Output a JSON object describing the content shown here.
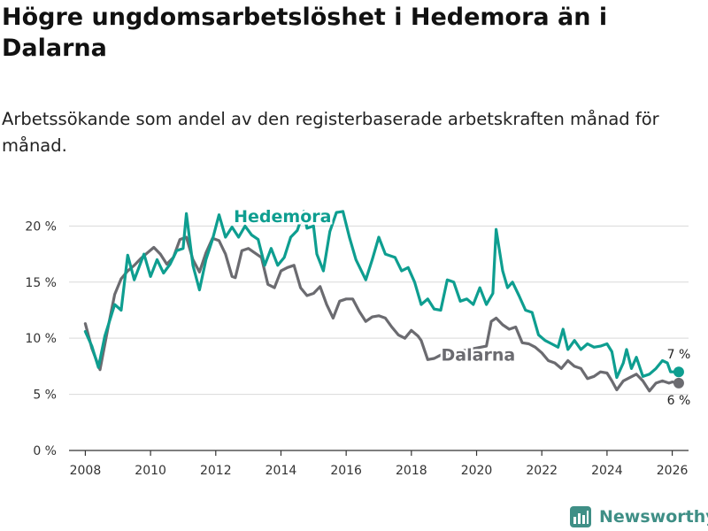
{
  "header": {
    "title": "Högre ungdomsarbetslöshet i Hedemora än i Dalarna",
    "subtitle": "Arbetssökande som andel av den registerbaserade arbetskraften månad för månad."
  },
  "footer": {
    "brand": "Newsworthy"
  },
  "colors": {
    "hedemora": "#0e9e90",
    "dalarna": "#6b6b70",
    "grid": "#d9d9d9",
    "axis": "#333333"
  },
  "chart_data": {
    "type": "line",
    "title": "Högre ungdomsarbetslöshet i Hedemora än i Dalarna",
    "subtitle": "Arbetssökande som andel av den registerbaserade arbetskraften månad för månad.",
    "xlabel": "",
    "ylabel": "",
    "xlim": [
      2007.5,
      2026.5
    ],
    "ylim": [
      0,
      22
    ],
    "x_ticks": [
      2008,
      2010,
      2012,
      2014,
      2016,
      2018,
      2020,
      2022,
      2024,
      2026
    ],
    "x_tick_labels": [
      "2008",
      "2010",
      "2012",
      "2014",
      "2016",
      "2018",
      "2020",
      "2022",
      "2024",
      "2026"
    ],
    "y_ticks": [
      0,
      5,
      10,
      15,
      20
    ],
    "y_tick_labels": [
      "0 %",
      "5 %",
      "10 %",
      "15 %",
      "20 %"
    ],
    "grid": true,
    "series": [
      {
        "name": "Hedemora",
        "label": "Hedemora",
        "end_label": "7 %",
        "points": [
          [
            2008.0,
            10.6
          ],
          [
            2008.2,
            9.3
          ],
          [
            2008.4,
            7.4
          ],
          [
            2008.6,
            10.2
          ],
          [
            2008.9,
            13.0
          ],
          [
            2009.1,
            12.5
          ],
          [
            2009.3,
            17.4
          ],
          [
            2009.5,
            15.2
          ],
          [
            2009.8,
            17.5
          ],
          [
            2010.0,
            15.5
          ],
          [
            2010.2,
            17.0
          ],
          [
            2010.4,
            15.8
          ],
          [
            2010.6,
            16.6
          ],
          [
            2010.8,
            17.8
          ],
          [
            2011.0,
            18.0
          ],
          [
            2011.1,
            21.1
          ],
          [
            2011.3,
            16.5
          ],
          [
            2011.5,
            14.3
          ],
          [
            2011.7,
            17.0
          ],
          [
            2011.9,
            18.8
          ],
          [
            2012.1,
            21.0
          ],
          [
            2012.3,
            19.0
          ],
          [
            2012.5,
            19.9
          ],
          [
            2012.7,
            19.0
          ],
          [
            2012.9,
            20.0
          ],
          [
            2013.1,
            19.2
          ],
          [
            2013.3,
            18.8
          ],
          [
            2013.5,
            16.5
          ],
          [
            2013.7,
            18.0
          ],
          [
            2013.9,
            16.5
          ],
          [
            2014.1,
            17.2
          ],
          [
            2014.3,
            19.0
          ],
          [
            2014.5,
            19.6
          ],
          [
            2014.7,
            21.3
          ],
          [
            2014.8,
            19.8
          ],
          [
            2015.0,
            20.0
          ],
          [
            2015.1,
            17.5
          ],
          [
            2015.3,
            16.0
          ],
          [
            2015.5,
            19.5
          ],
          [
            2015.7,
            21.2
          ],
          [
            2015.9,
            21.3
          ],
          [
            2016.1,
            19.0
          ],
          [
            2016.3,
            17.0
          ],
          [
            2016.6,
            15.2
          ],
          [
            2016.8,
            17.0
          ],
          [
            2017.0,
            19.0
          ],
          [
            2017.2,
            17.5
          ],
          [
            2017.5,
            17.2
          ],
          [
            2017.7,
            16.0
          ],
          [
            2017.9,
            16.3
          ],
          [
            2018.1,
            15.0
          ],
          [
            2018.3,
            13.0
          ],
          [
            2018.5,
            13.5
          ],
          [
            2018.7,
            12.6
          ],
          [
            2018.9,
            12.5
          ],
          [
            2019.1,
            15.2
          ],
          [
            2019.3,
            15.0
          ],
          [
            2019.5,
            13.3
          ],
          [
            2019.7,
            13.5
          ],
          [
            2019.9,
            13.0
          ],
          [
            2020.1,
            14.5
          ],
          [
            2020.3,
            13.0
          ],
          [
            2020.5,
            14.0
          ],
          [
            2020.6,
            19.7
          ],
          [
            2020.8,
            16.0
          ],
          [
            2020.95,
            14.5
          ],
          [
            2021.1,
            15.0
          ],
          [
            2021.3,
            13.8
          ],
          [
            2021.5,
            12.5
          ],
          [
            2021.7,
            12.3
          ],
          [
            2021.9,
            10.3
          ],
          [
            2022.1,
            9.8
          ],
          [
            2022.3,
            9.5
          ],
          [
            2022.5,
            9.2
          ],
          [
            2022.65,
            10.8
          ],
          [
            2022.8,
            9.0
          ],
          [
            2023.0,
            9.8
          ],
          [
            2023.2,
            9.0
          ],
          [
            2023.4,
            9.5
          ],
          [
            2023.6,
            9.2
          ],
          [
            2023.8,
            9.3
          ],
          [
            2024.0,
            9.5
          ],
          [
            2024.15,
            8.8
          ],
          [
            2024.3,
            6.5
          ],
          [
            2024.5,
            7.8
          ],
          [
            2024.6,
            9.0
          ],
          [
            2024.75,
            7.3
          ],
          [
            2024.9,
            8.3
          ],
          [
            2025.1,
            6.6
          ],
          [
            2025.3,
            6.8
          ],
          [
            2025.5,
            7.3
          ],
          [
            2025.7,
            8.0
          ],
          [
            2025.85,
            7.8
          ],
          [
            2025.95,
            7.0
          ],
          [
            2026.2,
            7.0
          ]
        ]
      },
      {
        "name": "Dalarna",
        "label": "Dalarna",
        "end_label": "6 %",
        "points": [
          [
            2008.0,
            11.3
          ],
          [
            2008.2,
            9.1
          ],
          [
            2008.45,
            7.2
          ],
          [
            2008.7,
            11.0
          ],
          [
            2008.9,
            13.9
          ],
          [
            2009.1,
            15.3
          ],
          [
            2009.3,
            16.0
          ],
          [
            2009.5,
            16.5
          ],
          [
            2009.7,
            17.1
          ],
          [
            2009.9,
            17.6
          ],
          [
            2010.1,
            18.1
          ],
          [
            2010.3,
            17.5
          ],
          [
            2010.5,
            16.6
          ],
          [
            2010.7,
            17.2
          ],
          [
            2010.9,
            18.8
          ],
          [
            2011.1,
            19.0
          ],
          [
            2011.3,
            17.0
          ],
          [
            2011.5,
            15.9
          ],
          [
            2011.7,
            17.6
          ],
          [
            2011.9,
            18.9
          ],
          [
            2012.1,
            18.7
          ],
          [
            2012.3,
            17.5
          ],
          [
            2012.5,
            15.5
          ],
          [
            2012.6,
            15.4
          ],
          [
            2012.8,
            17.8
          ],
          [
            2013.0,
            18.0
          ],
          [
            2013.2,
            17.6
          ],
          [
            2013.4,
            17.2
          ],
          [
            2013.6,
            14.8
          ],
          [
            2013.8,
            14.5
          ],
          [
            2014.0,
            16.0
          ],
          [
            2014.2,
            16.3
          ],
          [
            2014.4,
            16.5
          ],
          [
            2014.6,
            14.5
          ],
          [
            2014.8,
            13.8
          ],
          [
            2015.0,
            14.0
          ],
          [
            2015.2,
            14.6
          ],
          [
            2015.4,
            13.0
          ],
          [
            2015.6,
            11.8
          ],
          [
            2015.8,
            13.3
          ],
          [
            2016.0,
            13.5
          ],
          [
            2016.2,
            13.5
          ],
          [
            2016.4,
            12.4
          ],
          [
            2016.6,
            11.5
          ],
          [
            2016.8,
            11.9
          ],
          [
            2017.0,
            12.0
          ],
          [
            2017.2,
            11.8
          ],
          [
            2017.4,
            11.0
          ],
          [
            2017.6,
            10.3
          ],
          [
            2017.8,
            10.0
          ],
          [
            2018.0,
            10.7
          ],
          [
            2018.2,
            10.2
          ],
          [
            2018.3,
            9.8
          ],
          [
            2018.5,
            8.1
          ],
          [
            2018.7,
            8.2
          ],
          [
            2018.9,
            8.5
          ],
          [
            2020.3,
            9.3
          ],
          [
            2020.45,
            11.5
          ],
          [
            2020.6,
            11.8
          ],
          [
            2020.8,
            11.2
          ],
          [
            2021.0,
            10.8
          ],
          [
            2021.2,
            11.0
          ],
          [
            2021.4,
            9.6
          ],
          [
            2021.6,
            9.5
          ],
          [
            2021.8,
            9.2
          ],
          [
            2022.0,
            8.7
          ],
          [
            2022.2,
            8.0
          ],
          [
            2022.4,
            7.8
          ],
          [
            2022.6,
            7.3
          ],
          [
            2022.8,
            8.0
          ],
          [
            2023.0,
            7.5
          ],
          [
            2023.2,
            7.3
          ],
          [
            2023.4,
            6.4
          ],
          [
            2023.6,
            6.6
          ],
          [
            2023.8,
            7.0
          ],
          [
            2024.0,
            6.9
          ],
          [
            2024.15,
            6.2
          ],
          [
            2024.3,
            5.4
          ],
          [
            2024.5,
            6.2
          ],
          [
            2024.7,
            6.5
          ],
          [
            2024.9,
            6.8
          ],
          [
            2025.1,
            6.2
          ],
          [
            2025.3,
            5.3
          ],
          [
            2025.5,
            6.0
          ],
          [
            2025.7,
            6.2
          ],
          [
            2025.9,
            6.0
          ],
          [
            2026.0,
            6.1
          ],
          [
            2026.2,
            6.0
          ]
        ]
      }
    ]
  }
}
